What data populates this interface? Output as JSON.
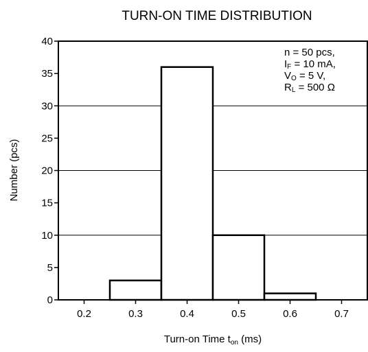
{
  "chart_data": {
    "type": "bar",
    "title": "TURN-ON TIME DISTRIBUTION",
    "ylabel": "Number  (pcs)",
    "xlabel": {
      "main": "Turn-on Time  t",
      "sub": "on",
      "unit": " (ms)"
    },
    "ylim": [
      0,
      40
    ],
    "xlim": [
      0.15,
      0.75
    ],
    "yticks": [
      "0",
      "5",
      "10",
      "15",
      "20",
      "25",
      "30",
      "35",
      "40"
    ],
    "xticks": [
      "0.2",
      "0.3",
      "0.4",
      "0.5",
      "0.6",
      "0.7"
    ],
    "bin_width": 0.1,
    "categories": [
      "0.2",
      "0.3",
      "0.4",
      "0.5",
      "0.6",
      "0.7"
    ],
    "values": [
      0,
      3,
      36,
      10,
      1,
      0
    ],
    "gridlines_y": [
      10,
      20,
      30
    ],
    "annotations": [
      {
        "main": "n = 50 pcs,",
        "sub": "",
        "rest": ""
      },
      {
        "main": "I",
        "sub": "F",
        "rest": " = 10 mA,"
      },
      {
        "main": "V",
        "sub": "O",
        "rest": " = 5 V,"
      },
      {
        "main": "R",
        "sub": "L",
        "rest": " = 500 Ω"
      }
    ]
  }
}
